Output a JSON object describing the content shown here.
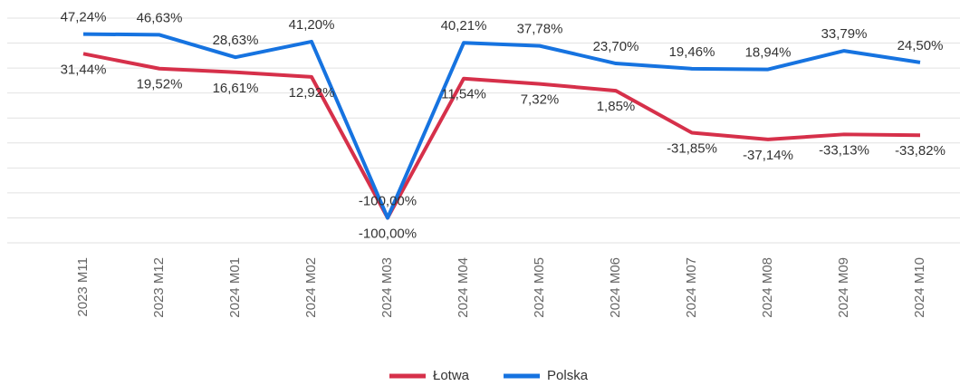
{
  "chart_data": {
    "type": "line",
    "categories": [
      "2023 M11",
      "2023 M12",
      "2024 M01",
      "2024 M02",
      "2024 M03",
      "2024 M04",
      "2024 M05",
      "2024 M06",
      "2024 M07",
      "2024 M08",
      "2024 M09",
      "2024 M10"
    ],
    "series": [
      {
        "name": "Łotwa",
        "color": "#d6304a",
        "values": [
          31.44,
          19.52,
          16.61,
          12.92,
          -100,
          11.54,
          7.32,
          1.85,
          -31.85,
          -37.14,
          -33.13,
          -33.82
        ],
        "value_labels": [
          "31,44%",
          "19,52%",
          "16,61%",
          "12,92%",
          "-100,00%",
          "11,54%",
          "7,32%",
          "1,85%",
          "-31,85%",
          "-37,14%",
          "-33,13%",
          "-33,82%"
        ]
      },
      {
        "name": "Polska",
        "color": "#1673e0",
        "values": [
          47.24,
          46.63,
          28.63,
          41.2,
          -100,
          40.21,
          37.78,
          23.7,
          19.46,
          18.94,
          33.79,
          24.5
        ],
        "value_labels": [
          "47,24%",
          "46,63%",
          "28,63%",
          "41,20%",
          "-100,00%",
          "40,21%",
          "37,78%",
          "23,70%",
          "19,46%",
          "18,94%",
          "33,79%",
          "24,50%"
        ]
      }
    ],
    "ylim": [
      -120,
      60
    ],
    "yticks": [
      -120,
      -100,
      -80,
      -60,
      -40,
      -20,
      0,
      20,
      40,
      60
    ],
    "grid": true
  }
}
